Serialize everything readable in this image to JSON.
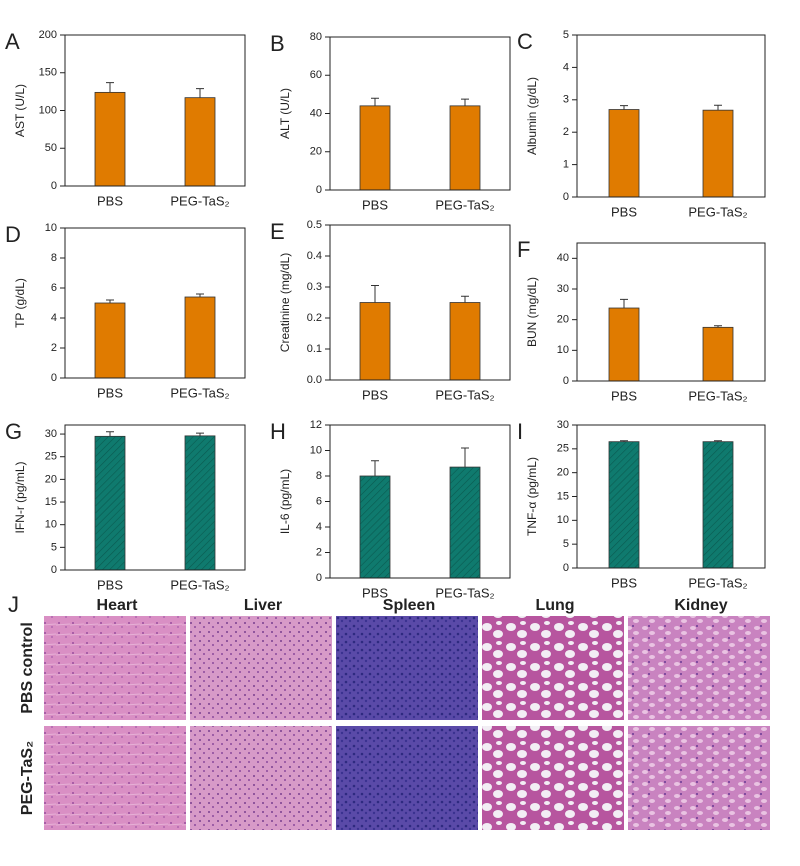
{
  "chart_data": [
    {
      "type": "bar",
      "panel": "A",
      "ylabel": "AST (U/L)",
      "categories": [
        "PBS",
        "PEG-TaS₂"
      ],
      "values": [
        124,
        117
      ],
      "errors": [
        13,
        12
      ],
      "color": "#e07b00",
      "hatch": false,
      "ylim": [
        0,
        200
      ],
      "yticks": [
        0,
        50,
        100,
        150,
        200
      ]
    },
    {
      "type": "bar",
      "panel": "B",
      "ylabel": "ALT (U/L)",
      "categories": [
        "PBS",
        "PEG-TaS₂"
      ],
      "values": [
        44,
        44
      ],
      "errors": [
        4,
        3.5
      ],
      "color": "#e07b00",
      "hatch": false,
      "ylim": [
        0,
        80
      ],
      "yticks": [
        0,
        20,
        40,
        60,
        80
      ]
    },
    {
      "type": "bar",
      "panel": "C",
      "ylabel": "Albumin (g/dL)",
      "categories": [
        "PBS",
        "PEG-TaS₂"
      ],
      "values": [
        2.7,
        2.68
      ],
      "errors": [
        0.12,
        0.15
      ],
      "color": "#e07b00",
      "hatch": false,
      "ylim": [
        0,
        5
      ],
      "yticks": [
        0,
        1,
        2,
        3,
        4,
        5
      ]
    },
    {
      "type": "bar",
      "panel": "D",
      "ylabel": "TP (g/dL)",
      "categories": [
        "PBS",
        "PEG-TaS₂"
      ],
      "values": [
        5.0,
        5.4
      ],
      "errors": [
        0.2,
        0.2
      ],
      "color": "#e07b00",
      "hatch": false,
      "ylim": [
        0,
        10
      ],
      "yticks": [
        0,
        2,
        4,
        6,
        8,
        10
      ]
    },
    {
      "type": "bar",
      "panel": "E",
      "ylabel": "Creatinine (mg/dL)",
      "categories": [
        "PBS",
        "PEG-TaS₂"
      ],
      "values": [
        0.25,
        0.25
      ],
      "errors": [
        0.055,
        0.02
      ],
      "color": "#e07b00",
      "hatch": false,
      "ylim": [
        0,
        0.5
      ],
      "yticks": [
        {
          "value": 0,
          "label": "0.0"
        },
        0.1,
        0.2,
        0.3,
        0.4,
        0.5
      ]
    },
    {
      "type": "bar",
      "panel": "F",
      "ylabel": "BUN (mg/dL)",
      "categories": [
        "PBS",
        "PEG-TaS₂"
      ],
      "values": [
        23.8,
        17.5
      ],
      "errors": [
        2.8,
        0.5
      ],
      "color": "#e07b00",
      "hatch": false,
      "ylim": [
        0,
        45
      ],
      "yticks": [
        0,
        10,
        20,
        30,
        40
      ]
    },
    {
      "type": "bar",
      "panel": "G",
      "ylabel": "IFN-r (pg/mL)",
      "categories": [
        "PBS",
        "PEG-TaS₂"
      ],
      "values": [
        29.5,
        29.6
      ],
      "errors": [
        1,
        0.6
      ],
      "color": "#0f7a6e",
      "hatch": true,
      "ylim": [
        0,
        32
      ],
      "yticks": [
        0,
        5,
        10,
        15,
        20,
        25,
        30
      ]
    },
    {
      "type": "bar",
      "panel": "H",
      "ylabel": "IL-6 (pg/mL)",
      "categories": [
        "PBS",
        "PEG-TaS₂"
      ],
      "values": [
        8.0,
        8.7
      ],
      "errors": [
        1.2,
        1.5
      ],
      "color": "#0f7a6e",
      "hatch": true,
      "ylim": [
        0,
        12
      ],
      "yticks": [
        0,
        2,
        4,
        6,
        8,
        10,
        12
      ]
    },
    {
      "type": "bar",
      "panel": "I",
      "ylabel": "TNF-α (pg/mL)",
      "categories": [
        "PBS",
        "PEG-TaS₂"
      ],
      "values": [
        26.5,
        26.5
      ],
      "errors": [
        0.2,
        0.2
      ],
      "color": "#0f7a6e",
      "hatch": true,
      "ylim": [
        0,
        30
      ],
      "yticks": [
        0,
        5,
        10,
        15,
        20,
        25,
        30
      ]
    }
  ],
  "histology": {
    "panel": "J",
    "columns": [
      "Heart",
      "Liver",
      "Spleen",
      "Lung",
      "Kidney"
    ],
    "rows": [
      "PBS control",
      "PEG-TaS₂"
    ]
  }
}
